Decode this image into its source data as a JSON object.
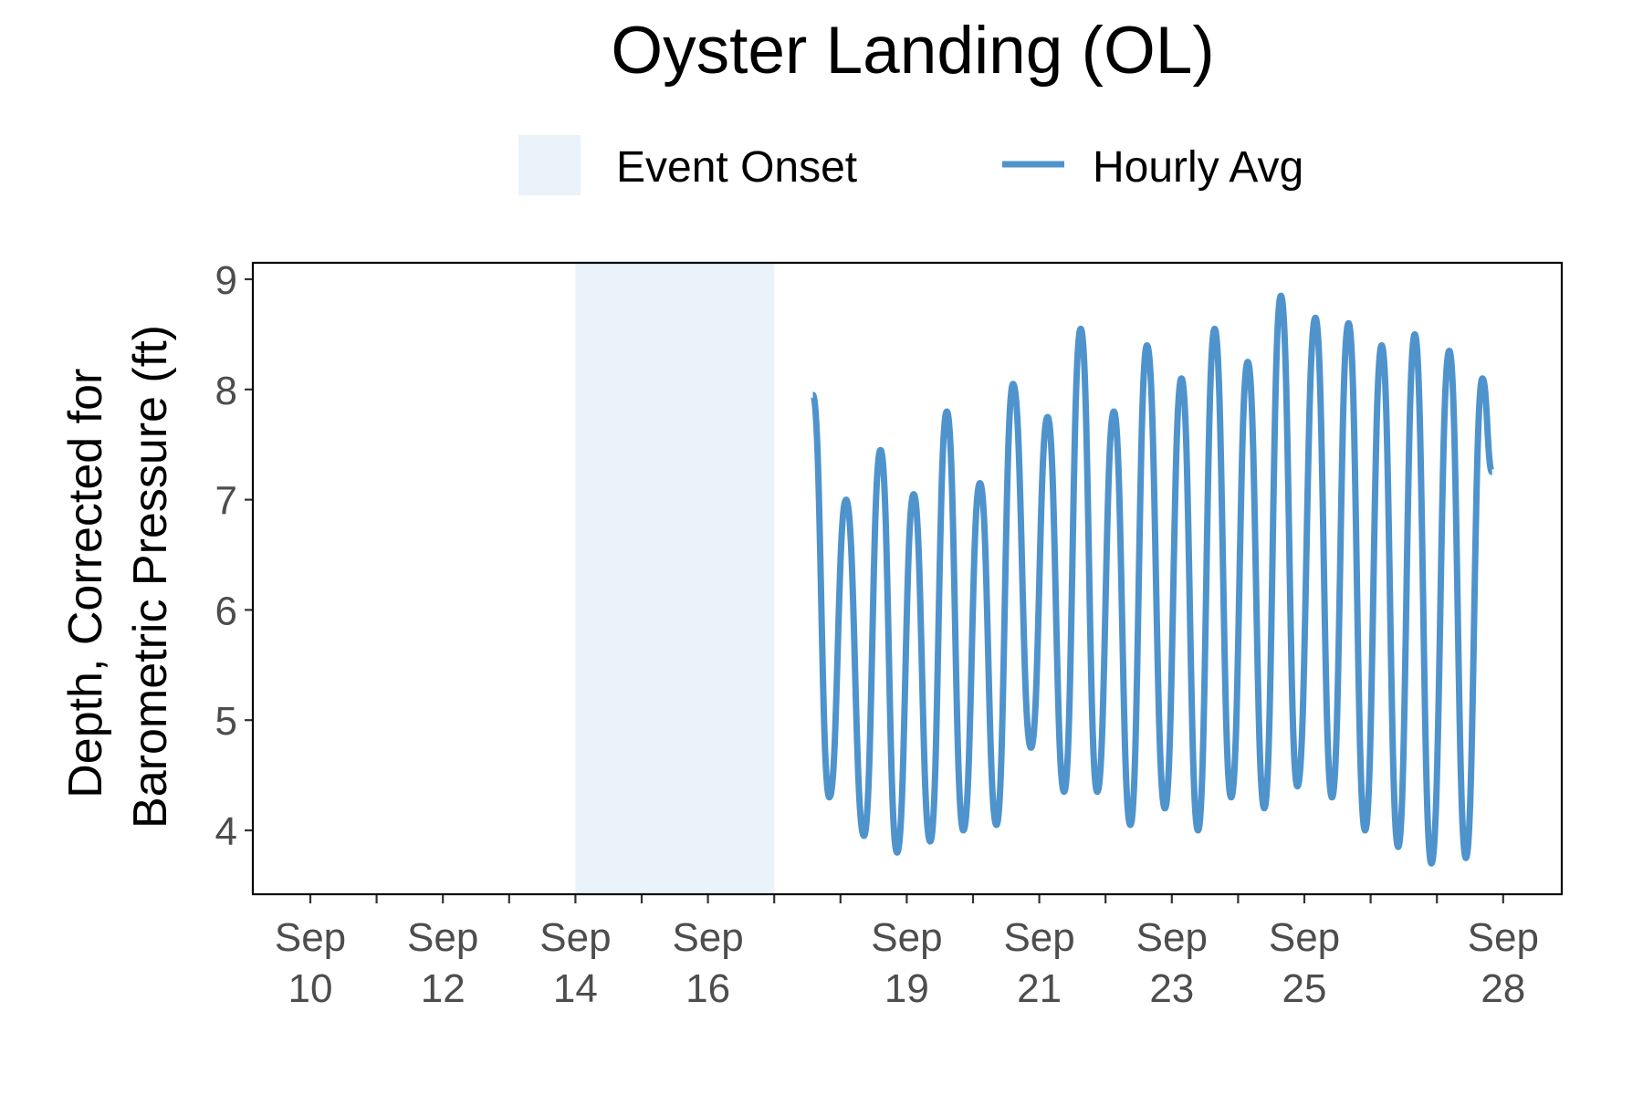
{
  "chart_data": {
    "type": "line",
    "title": "Oyster Landing (OL)",
    "ylabel_lines": [
      "Depth, Corrected for",
      "Barometric Pressure (ft)"
    ],
    "xlabel": "",
    "legend": {
      "placement": "top",
      "entries": [
        {
          "name": "Event Onset",
          "kind": "shaded-region",
          "color": "#eaf2fa"
        },
        {
          "name": "Hourly Avg",
          "kind": "line",
          "color": "#4f93cc"
        }
      ]
    },
    "x_range_days": [
      "2018-09-09",
      "2018-09-28"
    ],
    "ylim": [
      3.45,
      9.15
    ],
    "y_ticks": [
      4,
      5,
      6,
      7,
      8,
      9
    ],
    "x_ticks": [
      {
        "date": "2018-09-10",
        "month": "Sep",
        "day": "10",
        "labeled": true
      },
      {
        "date": "2018-09-11",
        "labeled": false
      },
      {
        "date": "2018-09-12",
        "month": "Sep",
        "day": "12",
        "labeled": true
      },
      {
        "date": "2018-09-13",
        "labeled": false
      },
      {
        "date": "2018-09-14",
        "month": "Sep",
        "day": "14",
        "labeled": true
      },
      {
        "date": "2018-09-15",
        "labeled": false
      },
      {
        "date": "2018-09-16",
        "month": "Sep",
        "day": "16",
        "labeled": true
      },
      {
        "date": "2018-09-17",
        "labeled": false
      },
      {
        "date": "2018-09-18",
        "labeled": false
      },
      {
        "date": "2018-09-19",
        "month": "Sep",
        "day": "19",
        "labeled": true
      },
      {
        "date": "2018-09-20",
        "labeled": false
      },
      {
        "date": "2018-09-21",
        "month": "Sep",
        "day": "21",
        "labeled": true
      },
      {
        "date": "2018-09-22",
        "labeled": false
      },
      {
        "date": "2018-09-23",
        "month": "Sep",
        "day": "23",
        "labeled": true
      },
      {
        "date": "2018-09-24",
        "labeled": false
      },
      {
        "date": "2018-09-25",
        "month": "Sep",
        "day": "25",
        "labeled": true
      },
      {
        "date": "2018-09-26",
        "labeled": false
      },
      {
        "date": "2018-09-27",
        "labeled": false
      },
      {
        "date": "2018-09-28",
        "month": "Sep",
        "day": "28",
        "labeled": true
      }
    ],
    "event_onset": {
      "start": "2018-09-14T00:00",
      "end": "2018-09-17T00:00"
    },
    "grid": false,
    "series": [
      {
        "name": "Hourly Avg",
        "color": "#4f93cc",
        "points": [
          [
            "2018-09-17T14:00",
            7.95
          ],
          [
            "2018-09-17T20:00",
            4.3
          ],
          [
            "2018-09-18T02:00",
            7.0
          ],
          [
            "2018-09-18T08:30",
            3.95
          ],
          [
            "2018-09-18T14:30",
            7.45
          ],
          [
            "2018-09-18T20:30",
            3.8
          ],
          [
            "2018-09-19T02:30",
            7.05
          ],
          [
            "2018-09-19T08:30",
            3.9
          ],
          [
            "2018-09-19T14:30",
            7.8
          ],
          [
            "2018-09-19T20:30",
            4.0
          ],
          [
            "2018-09-20T02:30",
            7.15
          ],
          [
            "2018-09-20T08:30",
            4.05
          ],
          [
            "2018-09-20T14:30",
            8.05
          ],
          [
            "2018-09-20T21:00",
            4.75
          ],
          [
            "2018-09-21T03:00",
            7.75
          ],
          [
            "2018-09-21T09:00",
            4.35
          ],
          [
            "2018-09-21T15:00",
            8.55
          ],
          [
            "2018-09-21T21:00",
            4.35
          ],
          [
            "2018-09-22T03:00",
            7.8
          ],
          [
            "2018-09-22T09:00",
            4.05
          ],
          [
            "2018-09-22T15:00",
            8.4
          ],
          [
            "2018-09-22T21:30",
            4.2
          ],
          [
            "2018-09-23T03:30",
            8.1
          ],
          [
            "2018-09-23T09:30",
            4.0
          ],
          [
            "2018-09-23T15:30",
            8.55
          ],
          [
            "2018-09-23T21:30",
            4.3
          ],
          [
            "2018-09-24T03:30",
            8.25
          ],
          [
            "2018-09-24T09:30",
            4.2
          ],
          [
            "2018-09-24T15:30",
            8.85
          ],
          [
            "2018-09-24T21:30",
            4.4
          ],
          [
            "2018-09-25T04:00",
            8.65
          ],
          [
            "2018-09-25T10:00",
            4.3
          ],
          [
            "2018-09-25T16:00",
            8.6
          ],
          [
            "2018-09-25T22:00",
            4.0
          ],
          [
            "2018-09-26T04:00",
            8.4
          ],
          [
            "2018-09-26T10:00",
            3.85
          ],
          [
            "2018-09-26T16:00",
            8.5
          ],
          [
            "2018-09-26T22:00",
            3.7
          ],
          [
            "2018-09-27T04:30",
            8.35
          ],
          [
            "2018-09-27T10:30",
            3.75
          ],
          [
            "2018-09-27T16:30",
            8.1
          ],
          [
            "2018-09-27T20:00",
            7.25
          ]
        ]
      }
    ]
  }
}
